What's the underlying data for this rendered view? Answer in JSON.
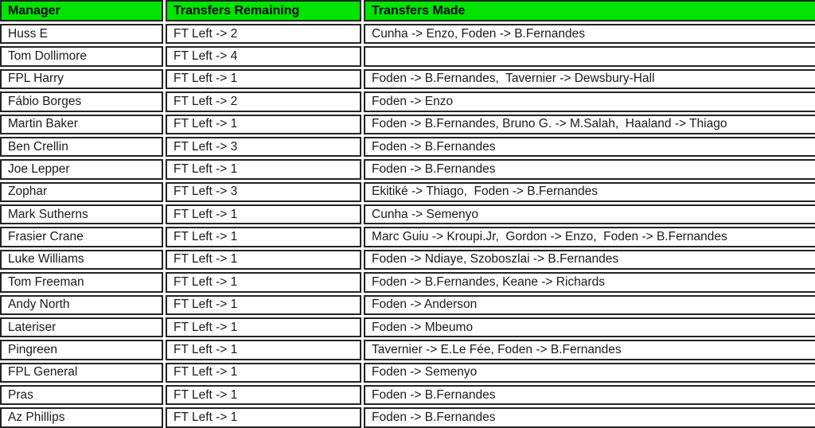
{
  "table": {
    "header_bg": "#00e400",
    "border_color": "#232323",
    "columns": [
      {
        "label": "Manager"
      },
      {
        "label": "Transfers Remaining"
      },
      {
        "label": "Transfers Made"
      }
    ],
    "rows": [
      {
        "manager": "Huss E",
        "remaining": "FT Left -> 2",
        "made": "Cunha -> Enzo, Foden -> B.Fernandes"
      },
      {
        "manager": "Tom Dollimore",
        "remaining": "FT Left -> 4",
        "made": ""
      },
      {
        "manager": "FPL Harry",
        "remaining": "FT Left -> 1",
        "made": "Foden -> B.Fernandes,  Tavernier -> Dewsbury-Hall"
      },
      {
        "manager": "Fábio Borges",
        "remaining": "FT Left -> 2",
        "made": "Foden -> Enzo"
      },
      {
        "manager": "Martin Baker",
        "remaining": "FT Left -> 1",
        "made": "Foden -> B.Fernandes, Bruno G. -> M.Salah,  Haaland -> Thiago"
      },
      {
        "manager": "Ben Crellin",
        "remaining": "FT Left -> 3",
        "made": "Foden -> B.Fernandes"
      },
      {
        "manager": "Joe Lepper",
        "remaining": "FT Left -> 1",
        "made": "Foden -> B.Fernandes"
      },
      {
        "manager": "Zophar",
        "remaining": "FT Left -> 3",
        "made": "Ekitiké -> Thiago,  Foden -> B.Fernandes"
      },
      {
        "manager": "Mark Sutherns",
        "remaining": "FT Left -> 1",
        "made": "Cunha -> Semenyo"
      },
      {
        "manager": "Frasier Crane",
        "remaining": "FT Left -> 1",
        "made": "Marc Guiu -> Kroupi.Jr,  Gordon -> Enzo,  Foden -> B.Fernandes"
      },
      {
        "manager": "Luke Williams",
        "remaining": "FT Left -> 1",
        "made": "Foden -> Ndiaye, Szoboszlai -> B.Fernandes"
      },
      {
        "manager": "Tom Freeman",
        "remaining": "FT Left -> 1",
        "made": "Foden -> B.Fernandes, Keane -> Richards"
      },
      {
        "manager": "Andy North",
        "remaining": "FT Left -> 1",
        "made": "Foden -> Anderson"
      },
      {
        "manager": "Lateriser",
        "remaining": "FT Left -> 1",
        "made": "Foden -> Mbeumo"
      },
      {
        "manager": "Pingreen",
        "remaining": "FT Left -> 1",
        "made": "Tavernier -> E.Le Fée, Foden -> B.Fernandes"
      },
      {
        "manager": "FPL General",
        "remaining": "FT Left -> 1",
        "made": "Foden -> Semenyo"
      },
      {
        "manager": "Pras",
        "remaining": "FT Left -> 1",
        "made": "Foden -> B.Fernandes"
      },
      {
        "manager": "Az Phillips",
        "remaining": "FT Left -> 1",
        "made": "Foden -> B.Fernandes"
      }
    ]
  }
}
